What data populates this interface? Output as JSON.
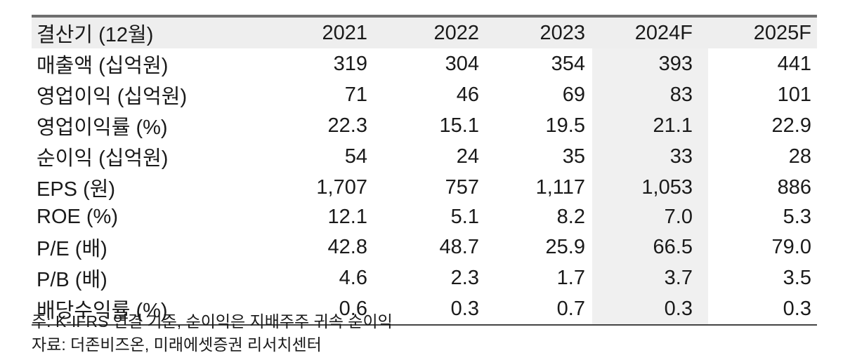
{
  "table": {
    "header": {
      "label": "결산기 (12월)",
      "years": [
        "2021",
        "2022",
        "2023",
        "2024F",
        "2025F"
      ]
    },
    "highlight_column": "2024F",
    "rows": [
      {
        "label": "매출액 (십억원)",
        "values": [
          "319",
          "304",
          "354",
          "393",
          "441"
        ]
      },
      {
        "label": "영업이익 (십억원)",
        "values": [
          "71",
          "46",
          "69",
          "83",
          "101"
        ]
      },
      {
        "label": "영업이익률 (%)",
        "values": [
          "22.3",
          "15.1",
          "19.5",
          "21.1",
          "22.9"
        ]
      },
      {
        "label": "순이익 (십억원)",
        "values": [
          "54",
          "24",
          "35",
          "33",
          "28"
        ]
      },
      {
        "label": "EPS (원)",
        "values": [
          "1,707",
          "757",
          "1,117",
          "1,053",
          "886"
        ]
      },
      {
        "label": "ROE (%)",
        "values": [
          "12.1",
          "5.1",
          "8.2",
          "7.0",
          "5.3"
        ]
      },
      {
        "label": "P/E (배)",
        "values": [
          "42.8",
          "48.7",
          "25.9",
          "66.5",
          "79.0"
        ]
      },
      {
        "label": "P/B (배)",
        "values": [
          "4.6",
          "2.3",
          "1.7",
          "3.7",
          "3.5"
        ]
      },
      {
        "label": "배당수익률 (%)",
        "values": [
          "0.6",
          "0.3",
          "0.7",
          "0.3",
          "0.3"
        ]
      }
    ]
  },
  "notes": {
    "note": "주: K-IFRS 연결 기준, 순이익은 지배주주 귀속 순이익",
    "source": "자료: 더존비즈온, 미래에셋증권 리서치센터"
  },
  "colors": {
    "text": "#1a1a1a",
    "header_bg": "#eeeeee",
    "highlight_bg": "#f0f0f0",
    "top_rule": "#6e6e6e",
    "bottom_rule": "#444444"
  }
}
